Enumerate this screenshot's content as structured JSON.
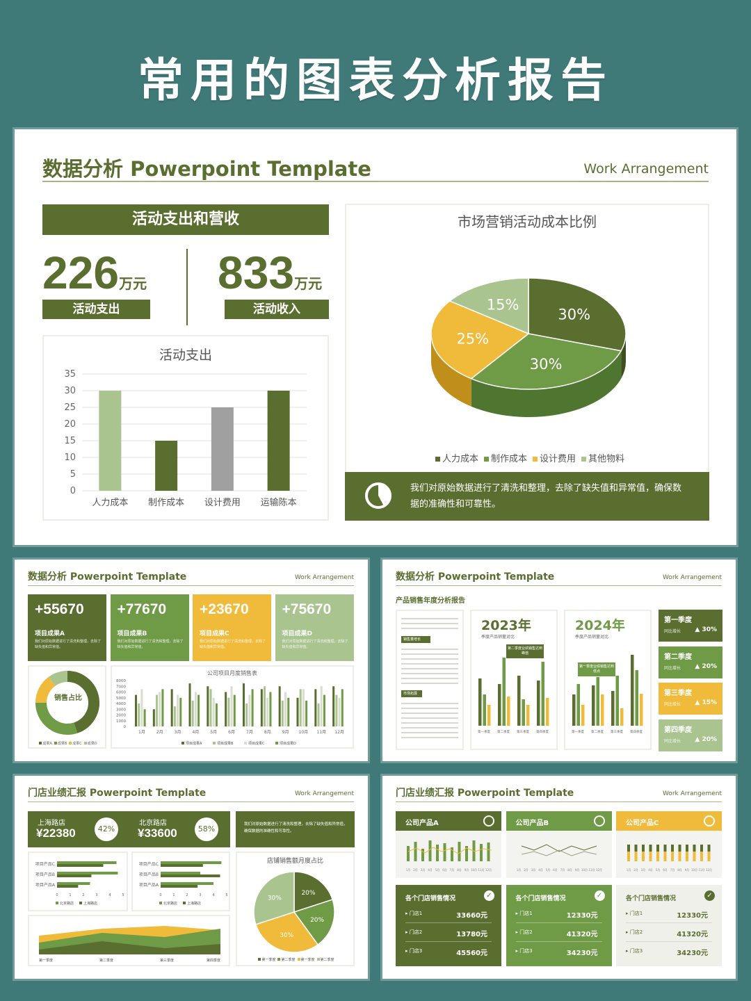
{
  "page": {
    "title": "常用的图表分析报告"
  },
  "colors": {
    "olive": "#5a6e30",
    "green": "#6f9a46",
    "yellow": "#f0bb3a",
    "light_green": "#a9c48f",
    "gray": "#a0a0a0",
    "teal_bg": "#3f7a78"
  },
  "card1": {
    "title": "数据分析 Powerpoint Template",
    "subtitle": "Work Arrangement",
    "banner": "活动支出和营收",
    "kpi1": {
      "value": "226",
      "unit": "万元",
      "label": "活动支出"
    },
    "kpi2": {
      "value": "833",
      "unit": "万元",
      "label": "活动收入"
    },
    "bar_chart_title": "活动支出",
    "pie_title": "市场营销活动成本比例",
    "pie_legend": [
      "人力成本",
      "制作成本",
      "设计费用",
      "其他物料"
    ],
    "note": "我们对原始数据进行了清洗和整理，去除了缺失值和异常值，确保数据的准确性和可靠性。",
    "note_icon": "pie-chart-icon"
  },
  "chart_data": [
    {
      "type": "bar",
      "title": "活动支出",
      "categories": [
        "人力成本",
        "制作成本",
        "设计费用",
        "运输陈本"
      ],
      "values": [
        30,
        15,
        25,
        30
      ],
      "ylim": [
        0,
        35
      ],
      "yticks": [
        0,
        5,
        10,
        15,
        20,
        25,
        30,
        35
      ],
      "colors": [
        "#a9c48f",
        "#5a6e30",
        "#a0a0a0",
        "#5a6e30"
      ],
      "grid": true
    },
    {
      "type": "pie",
      "title": "市场营销活动成本比例",
      "labels": [
        "人力成本",
        "制作成本",
        "设计费用",
        "其他物料"
      ],
      "values": [
        30,
        30,
        25,
        15
      ],
      "value_labels": [
        "30%",
        "30%",
        "25%",
        "15%"
      ],
      "colors": [
        "#5a6e30",
        "#6f9a46",
        "#f0bb3a",
        "#a9c48f"
      ],
      "legend": "bottom"
    },
    {
      "type": "bar",
      "title": "公司项目月度销售表",
      "categories": [
        "1月",
        "2月",
        "3月",
        "4月",
        "5月",
        "6月",
        "7月",
        "8月",
        "9月",
        "10月",
        "11月",
        "12月"
      ],
      "ylim": [
        0,
        8000
      ],
      "yticks": [
        0,
        1000,
        2000,
        3000,
        4000,
        5000,
        6000,
        7000,
        8000
      ],
      "series": [
        {
          "name": "项目成果A",
          "values": [
            5500,
            3000,
            6500,
            7500,
            7000,
            6000,
            7500,
            6500,
            7000,
            5000,
            6500,
            7000
          ]
        },
        {
          "name": "项目成果B",
          "values": [
            4000,
            5500,
            3500,
            4500,
            6500,
            5000,
            4000,
            7000,
            4500,
            6500,
            4000,
            5500
          ]
        },
        {
          "name": "项目成果C",
          "values": [
            6500,
            6000,
            5500,
            6000,
            5000,
            7000,
            5500,
            5000,
            6000,
            6500,
            7000,
            5000
          ]
        },
        {
          "name": "项目成果D",
          "values": [
            3000,
            6500,
            5000,
            5500,
            4000,
            5500,
            6500,
            6000,
            5000,
            4500,
            5500,
            6500
          ]
        }
      ],
      "colors": [
        "#5a6e30",
        "#a9c48f",
        "#d9dccf",
        "#6f9a46"
      ]
    }
  ],
  "card2": {
    "title": "数据分析 Powerpoint Template",
    "subtitle": "Work Arrangement",
    "kpis": [
      {
        "value": "+55670",
        "label": "项目成果A",
        "desc": "我们对原始数据进行了清洗和整理，去除了缺失值和异常值。"
      },
      {
        "value": "+77670",
        "label": "项目成果B",
        "desc": "我们对原始数据进行了清洗和整理，去除了缺失值和异常值。"
      },
      {
        "value": "+23670",
        "label": "项目成果C",
        "desc": "我们对原始数据进行了清洗和整理，去除了缺失值和异常值。"
      },
      {
        "value": "+75670",
        "label": "项目成果D",
        "desc": "我们对原始数据进行了清洗和整理，去除了缺失值和异常值。"
      }
    ],
    "donut_label": "销售占比",
    "donut_legend": [
      "成果A",
      "成果B",
      "成果C",
      "成果D"
    ],
    "chart_title": "公司项目月度销售表",
    "chart_legend": [
      "项目成果A",
      "项目成果B",
      "项目成果C",
      "项目成果D"
    ]
  },
  "card3": {
    "title": "数据分析 Powerpoint Template",
    "subtitle": "Work Arrangement",
    "section": "产品销售年度分析报告",
    "tag1": "销售量增长",
    "tag2": "市场拓展",
    "year1": "2023年",
    "year1_sub": "季度产品销量对比",
    "year1_callout": "第二季度业绩销售达到峰值",
    "year2": "2024年",
    "year2_sub": "季度产品销量对比",
    "year2_callout": "第一季度业绩销售达到低点",
    "quarters": [
      {
        "label": "第一季度",
        "sub": "同比增长",
        "value": "▲ 30%"
      },
      {
        "label": "第二季度",
        "sub": "同比增长",
        "value": "▲ 20%"
      },
      {
        "label": "第三季度",
        "sub": "同比增长",
        "value": "▲ 15%"
      },
      {
        "label": "第四季度",
        "sub": "同比增长",
        "value": "▲ 20%"
      }
    ],
    "q_axis": [
      "第一季度",
      "第二季度",
      "第三季度",
      "第四季度"
    ]
  },
  "card4": {
    "title": "门店业绩汇报 Powerpoint Template",
    "subtitle": "Work Arrangement",
    "store1": {
      "name": "上海路店",
      "value": "¥22380",
      "pct": "42%"
    },
    "store2": {
      "name": "北京路店",
      "value": "¥33600",
      "pct": "58%"
    },
    "note": "我们对原始数据进行了清洗和整理，去除了缺失值和异常值，确保数据的准确性和可靠性。",
    "products": [
      "项目产品C",
      "项目产品B",
      "项目产品A"
    ],
    "axis": [
      "0",
      "1",
      "2",
      "3",
      "4",
      "5"
    ],
    "legend": [
      "北京路店",
      "上海路店"
    ],
    "pie_title": "店铺销售额月度占比",
    "pie_labels": [
      "30%",
      "20%",
      "20%",
      "30%"
    ],
    "pie_legend": [
      "第一季度",
      "第二季度",
      "第一季度",
      "第二季度"
    ],
    "area_axis": [
      "第一季度",
      "第二季度",
      "第三季度",
      "第四季度"
    ]
  },
  "card5": {
    "title": "门店业绩汇报 Powerpoint Template",
    "subtitle": "Work Arrangement",
    "panels": [
      {
        "name": "公司产品A",
        "section": "各个门店销售情况",
        "rows": [
          [
            "门店1",
            "33660元"
          ],
          [
            "门店2",
            "13780元"
          ],
          [
            "门店3",
            "45560元"
          ]
        ]
      },
      {
        "name": "公司产品B",
        "section": "各个门店销售情况",
        "rows": [
          [
            "门店1",
            "12330元"
          ],
          [
            "门店2",
            "41320元"
          ],
          [
            "门店3",
            "34230元"
          ]
        ]
      },
      {
        "name": "公司产品C",
        "section": "各个门店销售情况",
        "rows": [
          [
            "门店1",
            "12330元"
          ],
          [
            "门店2",
            "41320元"
          ],
          [
            "门店3",
            "34230元"
          ]
        ]
      }
    ]
  }
}
